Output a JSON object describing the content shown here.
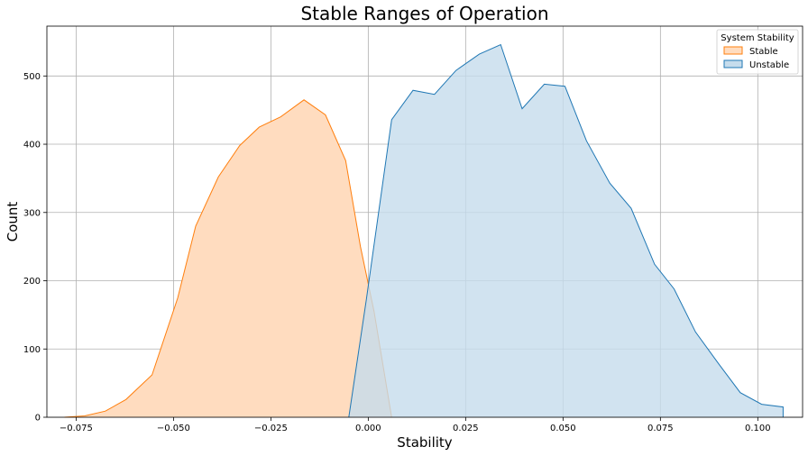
{
  "chart_data": {
    "type": "area",
    "title": "Stable Ranges of Operation",
    "xlabel": "Stability",
    "ylabel": "Count",
    "xlim": [
      -0.0825,
      0.1115
    ],
    "ylim": [
      0,
      573
    ],
    "grid": true,
    "x_ticks": [
      -0.075,
      -0.05,
      -0.025,
      0.0,
      0.025,
      0.05,
      0.075,
      0.1
    ],
    "x_tick_labels": [
      "−0.075",
      "−0.050",
      "−0.025",
      "0.000",
      "0.025",
      "0.050",
      "0.075",
      "0.100"
    ],
    "y_ticks": [
      0,
      100,
      200,
      300,
      400,
      500
    ],
    "y_tick_labels": [
      "0",
      "100",
      "200",
      "300",
      "400",
      "500"
    ],
    "legend": {
      "title": "System Stability",
      "position": "top-right"
    },
    "series": [
      {
        "name": "Stable",
        "color": "#ff7f0e",
        "fill": "#ffdcbf",
        "points": [
          [
            -0.078,
            0
          ],
          [
            -0.0728,
            2
          ],
          [
            -0.0675,
            9
          ],
          [
            -0.0622,
            26
          ],
          [
            -0.0555,
            62
          ],
          [
            -0.0489,
            175
          ],
          [
            -0.0443,
            280
          ],
          [
            -0.0385,
            352
          ],
          [
            -0.033,
            398
          ],
          [
            -0.028,
            425
          ],
          [
            -0.0225,
            440
          ],
          [
            -0.0165,
            465
          ],
          [
            -0.011,
            443
          ],
          [
            -0.0058,
            376
          ],
          [
            -0.002,
            250
          ],
          [
            0.0015,
            155
          ],
          [
            0.006,
            0
          ]
        ]
      },
      {
        "name": "Unstable",
        "color": "#1f77b4",
        "fill": "#c6dcec",
        "points": [
          [
            -0.005,
            0
          ],
          [
            -0.0005,
            172
          ],
          [
            0.006,
            436
          ],
          [
            0.0115,
            479
          ],
          [
            0.017,
            473
          ],
          [
            0.0225,
            508
          ],
          [
            0.0285,
            532
          ],
          [
            0.034,
            546
          ],
          [
            0.0395,
            452
          ],
          [
            0.0452,
            488
          ],
          [
            0.0505,
            485
          ],
          [
            0.056,
            405
          ],
          [
            0.062,
            343
          ],
          [
            0.0675,
            306
          ],
          [
            0.0735,
            224
          ],
          [
            0.0785,
            188
          ],
          [
            0.084,
            125
          ],
          [
            0.09,
            78
          ],
          [
            0.0955,
            36
          ],
          [
            0.101,
            19
          ],
          [
            0.1065,
            15
          ],
          [
            0.1065,
            0
          ]
        ]
      }
    ]
  }
}
